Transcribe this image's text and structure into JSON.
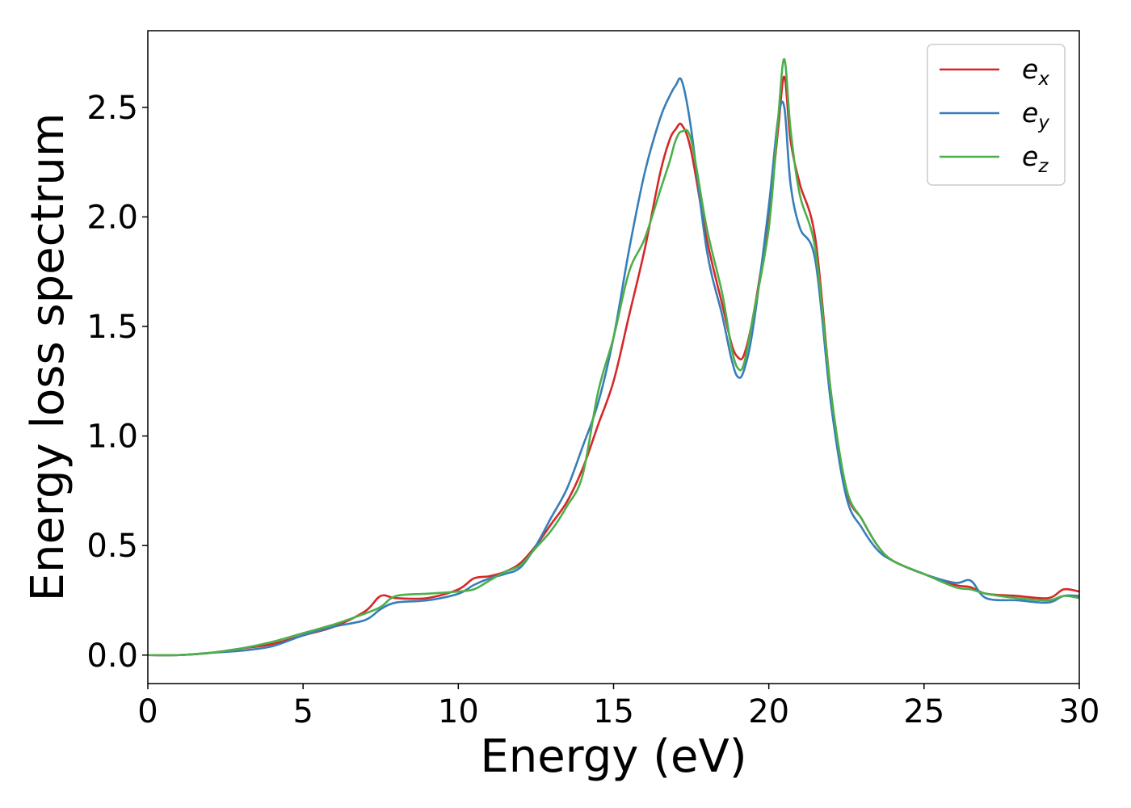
{
  "chart_data": {
    "type": "line",
    "title": "",
    "xlabel": "Energy (eV)",
    "ylabel": "Energy loss spectrum",
    "xlim": [
      0,
      30
    ],
    "ylim": [
      -0.13,
      2.85
    ],
    "xticks": [
      0,
      5,
      10,
      15,
      20,
      25,
      30
    ],
    "yticks": [
      0.0,
      0.5,
      1.0,
      1.5,
      2.0,
      2.5
    ],
    "xtick_labels": [
      "0",
      "5",
      "10",
      "15",
      "20",
      "25",
      "30"
    ],
    "ytick_labels": [
      "0.0",
      "0.5",
      "1.0",
      "1.5",
      "2.0",
      "2.5"
    ],
    "grid": false,
    "legend": "top-right",
    "series": [
      {
        "name": "e",
        "subscript": "x",
        "color": "#d62728",
        "x": [
          0,
          1,
          2,
          3,
          4,
          5,
          6,
          7,
          7.5,
          8,
          9,
          10,
          10.5,
          11,
          11.5,
          12,
          12.5,
          13,
          13.5,
          14,
          14.5,
          15,
          15.5,
          16,
          16.5,
          16.8,
          17,
          17.2,
          17.5,
          18,
          18.5,
          18.8,
          19,
          19.2,
          19.5,
          20,
          20.3,
          20.5,
          20.7,
          21,
          21.5,
          22,
          22.5,
          23,
          23.5,
          24,
          25,
          26,
          26.5,
          27,
          28,
          29,
          29.5,
          30
        ],
        "y": [
          0,
          0,
          0.01,
          0.03,
          0.05,
          0.09,
          0.13,
          0.2,
          0.27,
          0.26,
          0.26,
          0.3,
          0.35,
          0.36,
          0.38,
          0.42,
          0.5,
          0.6,
          0.7,
          0.85,
          1.05,
          1.25,
          1.55,
          1.85,
          2.2,
          2.35,
          2.4,
          2.42,
          2.3,
          1.9,
          1.6,
          1.42,
          1.36,
          1.37,
          1.55,
          2.0,
          2.4,
          2.64,
          2.35,
          2.15,
          1.9,
          1.2,
          0.75,
          0.62,
          0.5,
          0.43,
          0.37,
          0.32,
          0.31,
          0.28,
          0.27,
          0.26,
          0.3,
          0.29
        ]
      },
      {
        "name": "e",
        "subscript": "y",
        "color": "#377eb8",
        "x": [
          0,
          1,
          2,
          3,
          4,
          5,
          6,
          7,
          7.5,
          8,
          9,
          10,
          10.5,
          11,
          11.5,
          12,
          12.5,
          13,
          13.5,
          14,
          14.5,
          15,
          15.5,
          16,
          16.5,
          16.8,
          17,
          17.2,
          17.5,
          18,
          18.5,
          18.8,
          19,
          19.2,
          19.5,
          20,
          20.3,
          20.5,
          20.7,
          21,
          21.5,
          22,
          22.5,
          23,
          23.5,
          24,
          25,
          26,
          26.5,
          27,
          28,
          29,
          29.5,
          30
        ],
        "y": [
          0,
          0,
          0.01,
          0.02,
          0.04,
          0.09,
          0.13,
          0.16,
          0.21,
          0.24,
          0.25,
          0.28,
          0.32,
          0.35,
          0.37,
          0.4,
          0.5,
          0.63,
          0.76,
          0.95,
          1.15,
          1.45,
          1.85,
          2.2,
          2.45,
          2.55,
          2.6,
          2.62,
          2.4,
          1.85,
          1.55,
          1.35,
          1.27,
          1.3,
          1.5,
          2.05,
          2.45,
          2.5,
          2.15,
          1.95,
          1.8,
          1.15,
          0.72,
          0.58,
          0.48,
          0.43,
          0.37,
          0.33,
          0.34,
          0.26,
          0.25,
          0.24,
          0.27,
          0.27
        ]
      },
      {
        "name": "e",
        "subscript": "z",
        "color": "#4daf4a",
        "x": [
          0,
          1,
          2,
          3,
          4,
          5,
          6,
          7,
          7.5,
          8,
          9,
          10,
          10.5,
          11,
          11.5,
          12,
          12.5,
          13,
          13.5,
          14,
          14.5,
          15,
          15.5,
          16,
          16.5,
          16.8,
          17,
          17.2,
          17.5,
          18,
          18.5,
          18.8,
          19,
          19.2,
          19.5,
          20,
          20.3,
          20.5,
          20.7,
          21,
          21.5,
          22,
          22.5,
          23,
          23.5,
          24,
          25,
          26,
          26.5,
          27,
          28,
          29,
          29.5,
          30
        ],
        "y": [
          0,
          0,
          0.01,
          0.03,
          0.06,
          0.1,
          0.14,
          0.19,
          0.22,
          0.27,
          0.28,
          0.29,
          0.3,
          0.34,
          0.38,
          0.41,
          0.49,
          0.57,
          0.68,
          0.82,
          1.2,
          1.45,
          1.75,
          1.9,
          2.12,
          2.25,
          2.35,
          2.39,
          2.35,
          1.95,
          1.65,
          1.4,
          1.31,
          1.33,
          1.55,
          1.95,
          2.45,
          2.72,
          2.4,
          2.1,
          1.85,
          1.2,
          0.76,
          0.62,
          0.5,
          0.43,
          0.37,
          0.31,
          0.3,
          0.28,
          0.26,
          0.25,
          0.27,
          0.26
        ]
      }
    ]
  }
}
